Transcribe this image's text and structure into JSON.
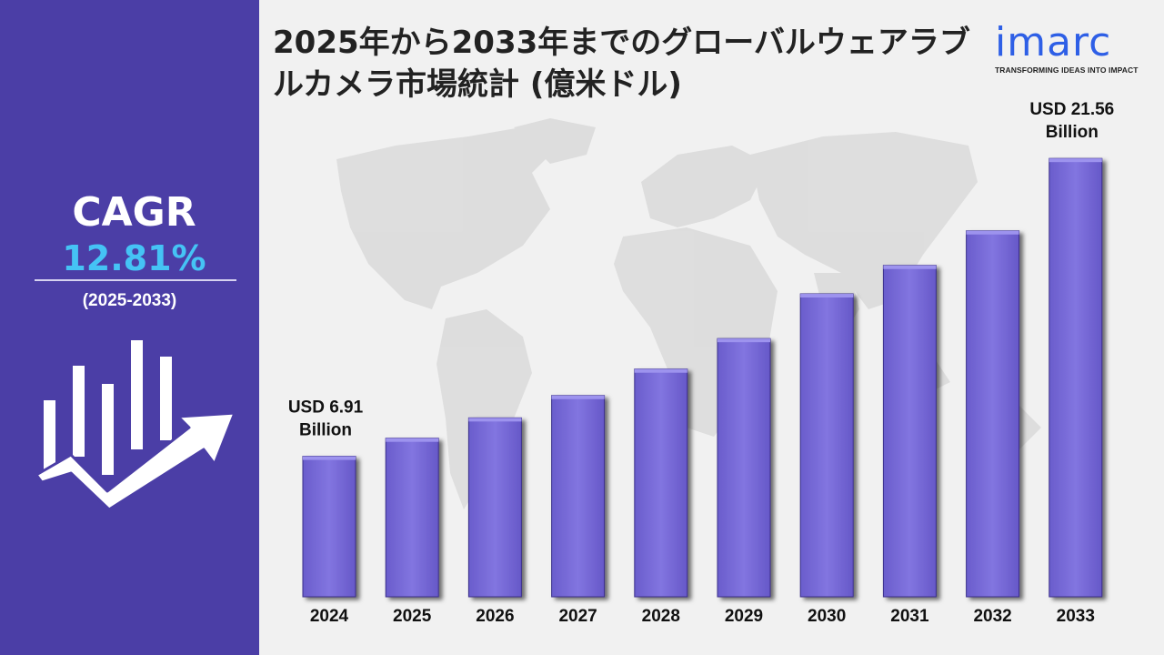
{
  "title": "2025年から2033年までのグローバルウェアラブルカメラ市場統計 (億米ドル)",
  "logo": {
    "word": "imarc",
    "tagline": "TRANSFORMING IDEAS INTO IMPACT"
  },
  "cagr": {
    "label": "CAGR",
    "value": "12.81%",
    "period": "(2025-2033)"
  },
  "colors": {
    "sidebar": "#4b3ea6",
    "cagr_value": "#45c3f5",
    "bar": "#7b6fd9",
    "background": "#f1f1f1",
    "map": "#dcdcdc"
  },
  "chart_data": {
    "type": "bar",
    "categories": [
      "2024",
      "2025",
      "2026",
      "2027",
      "2028",
      "2029",
      "2030",
      "2031",
      "2032",
      "2033"
    ],
    "values": [
      6.91,
      7.8,
      8.8,
      9.9,
      11.2,
      12.7,
      14.9,
      16.3,
      18.0,
      21.56
    ],
    "annotations": [
      {
        "index": 0,
        "lines": [
          "USD 6.91",
          "Billion"
        ]
      },
      {
        "index": 9,
        "lines": [
          "USD 21.56",
          "Billion"
        ]
      }
    ],
    "title": "",
    "xlabel": "",
    "ylabel": "",
    "ylim": [
      0,
      23
    ],
    "grid": false,
    "legend": "none"
  }
}
